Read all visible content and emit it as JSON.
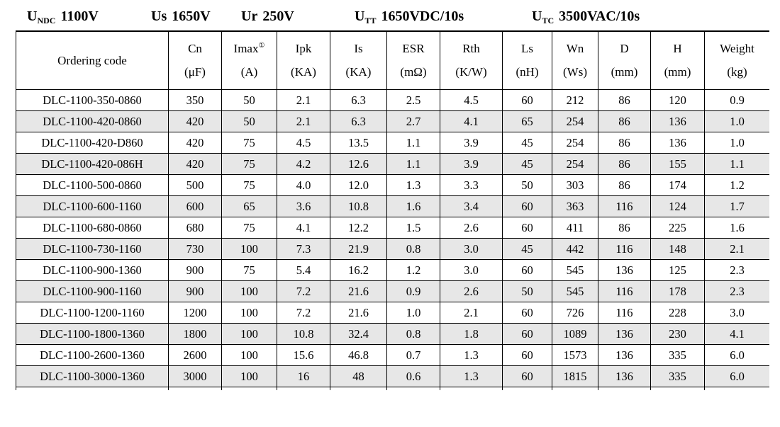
{
  "title_bar": {
    "items": [
      {
        "base": "U",
        "sub": "NDC",
        "value": "1100V"
      },
      {
        "base": "Us",
        "sub": "",
        "value": "1650V"
      },
      {
        "base": "Ur",
        "sub": "",
        "value": "250V"
      },
      {
        "base": "U",
        "sub": "TT",
        "value": "1650VDC/10s"
      },
      {
        "base": "U",
        "sub": "TC",
        "value": "3500VAC/10s"
      }
    ]
  },
  "table": {
    "columns": [
      {
        "key": "ordering-code",
        "label": "Ordering code",
        "sup": "",
        "unit": ""
      },
      {
        "key": "cn",
        "label": "Cn",
        "sup": "",
        "unit": "(μF)"
      },
      {
        "key": "imax",
        "label": "Imax",
        "sup": "①",
        "unit": "(A)"
      },
      {
        "key": "ipk",
        "label": "Ipk",
        "sup": "",
        "unit": "(KA)"
      },
      {
        "key": "is",
        "label": "Is",
        "sup": "",
        "unit": "(KA)"
      },
      {
        "key": "esr",
        "label": "ESR",
        "sup": "",
        "unit": "(mΩ)"
      },
      {
        "key": "rth",
        "label": "Rth",
        "sup": "",
        "unit": "(K/W)"
      },
      {
        "key": "ls",
        "label": "Ls",
        "sup": "",
        "unit": "(nH)"
      },
      {
        "key": "wn",
        "label": "Wn",
        "sup": "",
        "unit": "(Ws)"
      },
      {
        "key": "d",
        "label": "D",
        "sup": "",
        "unit": "(mm)"
      },
      {
        "key": "h",
        "label": "H",
        "sup": "",
        "unit": "(mm)"
      },
      {
        "key": "weight",
        "label": "Weight",
        "sup": "",
        "unit": "(kg)"
      }
    ],
    "rows": [
      [
        "DLC-1100-350-0860",
        "350",
        "50",
        "2.1",
        "6.3",
        "2.5",
        "4.5",
        "60",
        "212",
        "86",
        "120",
        "0.9"
      ],
      [
        "DLC-1100-420-0860",
        "420",
        "50",
        "2.1",
        "6.3",
        "2.7",
        "4.1",
        "65",
        "254",
        "86",
        "136",
        "1.0"
      ],
      [
        "DLC-1100-420-D860",
        "420",
        "75",
        "4.5",
        "13.5",
        "1.1",
        "3.9",
        "45",
        "254",
        "86",
        "136",
        "1.0"
      ],
      [
        "DLC-1100-420-086H",
        "420",
        "75",
        "4.2",
        "12.6",
        "1.1",
        "3.9",
        "45",
        "254",
        "86",
        "155",
        "1.1"
      ],
      [
        "DLC-1100-500-0860",
        "500",
        "75",
        "4.0",
        "12.0",
        "1.3",
        "3.3",
        "50",
        "303",
        "86",
        "174",
        "1.2"
      ],
      [
        "DLC-1100-600-1160",
        "600",
        "65",
        "3.6",
        "10.8",
        "1.6",
        "3.4",
        "60",
        "363",
        "116",
        "124",
        "1.7"
      ],
      [
        "DLC-1100-680-0860",
        "680",
        "75",
        "4.1",
        "12.2",
        "1.5",
        "2.6",
        "60",
        "411",
        "86",
        "225",
        "1.6"
      ],
      [
        "DLC-1100-730-1160",
        "730",
        "100",
        "7.3",
        "21.9",
        "0.8",
        "3.0",
        "45",
        "442",
        "116",
        "148",
        "2.1"
      ],
      [
        "DLC-1100-900-1360",
        "900",
        "75",
        "5.4",
        "16.2",
        "1.2",
        "3.0",
        "60",
        "545",
        "136",
        "125",
        "2.3"
      ],
      [
        "DLC-1100-900-1160",
        "900",
        "100",
        "7.2",
        "21.6",
        "0.9",
        "2.6",
        "50",
        "545",
        "116",
        "178",
        "2.3"
      ],
      [
        "DLC-1100-1200-1160",
        "1200",
        "100",
        "7.2",
        "21.6",
        "1.0",
        "2.1",
        "60",
        "726",
        "116",
        "228",
        "3.0"
      ],
      [
        "DLC-1100-1800-1360",
        "1800",
        "100",
        "10.8",
        "32.4",
        "0.8",
        "1.8",
        "60",
        "1089",
        "136",
        "230",
        "4.1"
      ],
      [
        "DLC-1100-2600-1360",
        "2600",
        "100",
        "15.6",
        "46.8",
        "0.7",
        "1.3",
        "60",
        "1573",
        "136",
        "335",
        "6.0"
      ],
      [
        "DLC-1100-3000-1360",
        "3000",
        "100",
        "16",
        "48",
        "0.6",
        "1.3",
        "60",
        "1815",
        "136",
        "335",
        "6.0"
      ]
    ],
    "colors": {
      "alt_row_background": "#e7e7e7",
      "border": "#000000",
      "text": "#000000"
    }
  }
}
